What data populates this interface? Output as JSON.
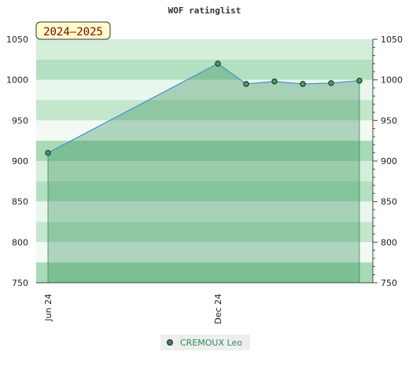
{
  "chart_data": {
    "type": "area",
    "title": "WOF ratinglist",
    "season_label": "2024–2025",
    "x_labels": [
      "Jun 24",
      "Dec 24"
    ],
    "series": [
      {
        "name": "CREMOUX Leo",
        "color": "#2e8b57",
        "line_color": "#4a90d9",
        "x": [
          "2024-06",
          "2024-12",
          "2025-01",
          "2025-02",
          "2025-03",
          "2025-04",
          "2025-05"
        ],
        "values": [
          910,
          1020,
          995,
          998,
          995,
          996,
          999
        ]
      }
    ],
    "ylim": [
      750,
      1050
    ],
    "y_ticks": [
      750,
      800,
      850,
      900,
      950,
      1000,
      1050
    ],
    "grid": true,
    "legend_position": "bottom"
  }
}
